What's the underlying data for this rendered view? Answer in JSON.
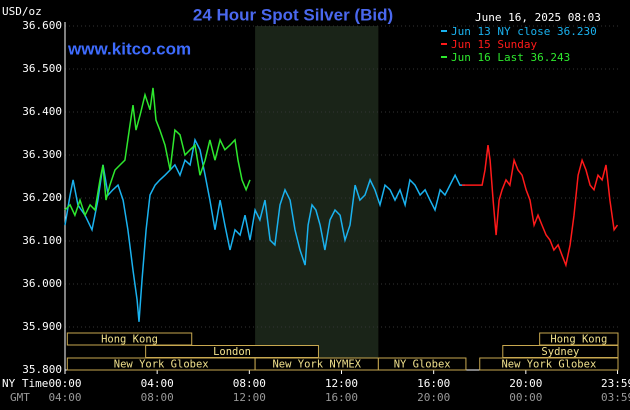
{
  "chart_data": {
    "type": "line",
    "title": "24 Hour Spot Silver (Bid)",
    "website": "www.kitco.com",
    "timestamp": "June 16, 2025 08:03",
    "y_label": "USD/oz",
    "x_label": "NY Time",
    "x2_label": "GMT",
    "xlim": [
      0,
      24
    ],
    "xticks": [
      {
        "value": 0,
        "label": "00:00"
      },
      {
        "value": 4,
        "label": "04:00"
      },
      {
        "value": 8,
        "label": "08:00"
      },
      {
        "value": 12,
        "label": "12:00"
      },
      {
        "value": 16,
        "label": "16:00"
      },
      {
        "value": 20,
        "label": "20:00"
      },
      {
        "value": 23.98,
        "label": "23:59"
      }
    ],
    "gmt_tick_labels": [
      "04:00",
      "08:00",
      "12:00",
      "16:00",
      "20:00",
      "00:00",
      "03:59"
    ],
    "ylim": [
      35.8,
      36.6
    ],
    "yticks": [
      {
        "value": 35.8,
        "label": "35.800"
      },
      {
        "value": 35.9,
        "label": "35.900"
      },
      {
        "value": 36.0,
        "label": "36.000"
      },
      {
        "value": 36.1,
        "label": "36.100"
      },
      {
        "value": 36.2,
        "label": "36.200"
      },
      {
        "value": 36.3,
        "label": "36.300"
      },
      {
        "value": 36.4,
        "label": "36.400"
      },
      {
        "value": 36.5,
        "label": "36.500"
      },
      {
        "value": 36.6,
        "label": "36.600"
      }
    ],
    "series": [
      {
        "name": "Jun 13 NY close 36.230",
        "color": "#1ab2ef",
        "x": [
          0,
          0.22,
          0.35,
          0.56,
          0.87,
          1.17,
          1.43,
          1.65,
          1.87,
          2.08,
          2.3,
          2.52,
          2.73,
          2.95,
          3.13,
          3.21,
          3.34,
          3.52,
          3.69,
          3.91,
          4.12,
          4.34,
          4.56,
          4.77,
          4.99,
          5.21,
          5.43,
          5.64,
          5.86,
          6.08,
          6.29,
          6.51,
          6.73,
          6.94,
          7.16,
          7.38,
          7.6,
          7.81,
          8.03,
          8.25,
          8.46,
          8.68,
          8.9,
          9.11,
          9.33,
          9.55,
          9.77,
          9.98,
          10.2,
          10.42,
          10.55,
          10.72,
          10.89,
          11.07,
          11.28,
          11.5,
          11.72,
          11.94,
          12.15,
          12.37,
          12.59,
          12.8,
          13.02,
          13.24,
          13.45,
          13.67,
          13.89,
          14.11,
          14.32,
          14.54,
          14.76,
          14.97,
          15.19,
          15.41,
          15.63,
          15.84,
          16.06,
          16.28,
          16.49,
          16.71,
          16.93,
          17.14,
          17.36
        ],
        "values": [
          36.137,
          36.207,
          36.242,
          36.184,
          36.16,
          36.126,
          36.195,
          36.277,
          36.207,
          36.219,
          36.23,
          36.195,
          36.126,
          36.032,
          35.963,
          35.912,
          36.009,
          36.126,
          36.207,
          36.23,
          36.242,
          36.253,
          36.265,
          36.277,
          36.253,
          36.288,
          36.277,
          36.335,
          36.312,
          36.253,
          36.195,
          36.126,
          36.195,
          36.137,
          36.079,
          36.126,
          36.114,
          36.16,
          36.102,
          36.172,
          36.149,
          36.195,
          36.102,
          36.091,
          36.184,
          36.219,
          36.195,
          36.126,
          36.079,
          36.044,
          36.137,
          36.184,
          36.172,
          36.137,
          36.079,
          36.149,
          36.172,
          36.16,
          36.102,
          36.137,
          36.23,
          36.195,
          36.207,
          36.242,
          36.219,
          36.184,
          36.23,
          36.219,
          36.195,
          36.219,
          36.184,
          36.242,
          36.23,
          36.207,
          36.219,
          36.195,
          36.172,
          36.219,
          36.207,
          36.23,
          36.253,
          36.23,
          36.23
        ]
      },
      {
        "name": "Jun 15 Sunday",
        "color": "#ff1a1a",
        "x": [
          17.23,
          18.1,
          18.23,
          18.36,
          18.45,
          18.58,
          18.71,
          18.84,
          18.97,
          19.14,
          19.31,
          19.49,
          19.66,
          19.84,
          20.01,
          20.18,
          20.36,
          20.53,
          20.7,
          20.88,
          21.05,
          21.22,
          21.4,
          21.57,
          21.74,
          21.92,
          22.09,
          22.27,
          22.44,
          22.61,
          22.79,
          22.96,
          23.13,
          23.31,
          23.48,
          23.65,
          23.83,
          23.98
        ],
        "values": [
          36.23,
          36.23,
          36.265,
          36.323,
          36.288,
          36.195,
          36.114,
          36.195,
          36.219,
          36.242,
          36.23,
          36.288,
          36.265,
          36.253,
          36.219,
          36.195,
          36.137,
          36.16,
          36.137,
          36.114,
          36.102,
          36.079,
          36.091,
          36.067,
          36.044,
          36.091,
          36.16,
          36.253,
          36.288,
          36.265,
          36.23,
          36.219,
          36.253,
          36.242,
          36.277,
          36.195,
          36.126,
          36.137
        ]
      },
      {
        "name": "Jun 16 Last 36.243",
        "color": "#2ee82e",
        "x": [
          0,
          0.22,
          0.43,
          0.65,
          0.87,
          1.09,
          1.3,
          1.52,
          1.65,
          1.78,
          1.95,
          2.17,
          2.39,
          2.6,
          2.82,
          2.95,
          3.08,
          3.26,
          3.47,
          3.69,
          3.82,
          3.95,
          4.12,
          4.34,
          4.56,
          4.77,
          4.99,
          5.21,
          5.43,
          5.64,
          5.86,
          6.08,
          6.29,
          6.51,
          6.73,
          6.94,
          7.16,
          7.38,
          7.51,
          7.68,
          7.86,
          8.03
        ],
        "values": [
          36.172,
          36.184,
          36.16,
          36.195,
          36.16,
          36.184,
          36.172,
          36.242,
          36.277,
          36.195,
          36.23,
          36.265,
          36.277,
          36.288,
          36.37,
          36.416,
          36.358,
          36.393,
          36.44,
          36.405,
          36.456,
          36.381,
          36.358,
          36.323,
          36.265,
          36.358,
          36.347,
          36.3,
          36.312,
          36.323,
          36.253,
          36.288,
          36.335,
          36.288,
          36.335,
          36.312,
          36.323,
          36.335,
          36.288,
          36.242,
          36.219,
          36.242
        ]
      }
    ],
    "sessions": [
      {
        "label": "Hong Kong",
        "start": 0.1,
        "end": 5.5
      },
      {
        "label": "London",
        "start": 3.5,
        "end": 11
      },
      {
        "label": "New York Globex",
        "start": 0.1,
        "end": 8.25
      },
      {
        "label": "New York NYMEX",
        "start": 8.25,
        "end": 13.6
      },
      {
        "label": "NY Globex",
        "start": 13.6,
        "end": 17.4
      },
      {
        "label": "Hong Kong",
        "start": 20.6,
        "end": 24
      },
      {
        "label": "Sydney",
        "start": 19,
        "end": 24
      },
      {
        "label": "New York Globex",
        "start": 18,
        "end": 24
      }
    ]
  }
}
